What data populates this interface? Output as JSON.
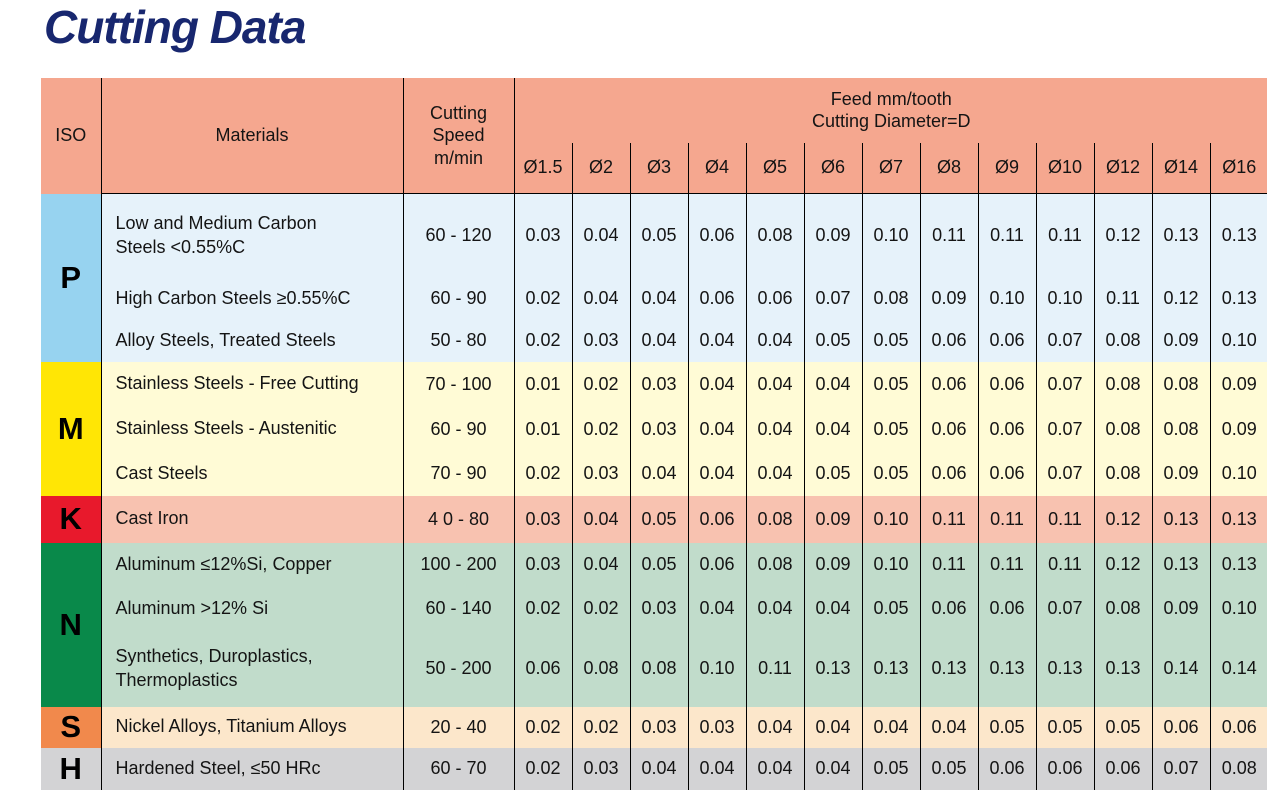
{
  "page_title": "Cutting Data",
  "title_color": "#18276F",
  "table": {
    "header": {
      "header_bg": "#F5A78F",
      "iso_label": "ISO",
      "materials_label": "Materials",
      "cutting_speed_lines": [
        "Cutting",
        "Speed",
        "m/min"
      ],
      "feed_title_lines": [
        "Feed mm/tooth",
        "Cutting Diameter=D"
      ],
      "diameter_labels": [
        "Ø1.5",
        "Ø2",
        "Ø3",
        "Ø4",
        "Ø5",
        "Ø6",
        "Ø7",
        "Ø8",
        "Ø9",
        "Ø10",
        "Ø12",
        "Ø14",
        "Ø16"
      ]
    },
    "groups": [
      {
        "iso": "P",
        "iso_bg": "#97D3F0",
        "row_bg": "#E6F2FA",
        "rows": [
          {
            "material_lines": [
              "Low and Medium Carbon",
              "Steels <0.55%C"
            ],
            "speed": "60 - 120",
            "feeds": [
              "0.03",
              "0.04",
              "0.05",
              "0.06",
              "0.08",
              "0.09",
              "0.10",
              "0.11",
              "0.11",
              "0.11",
              "0.12",
              "0.13",
              "0.13"
            ]
          },
          {
            "material_lines": [
              "High Carbon Steels ≥0.55%C"
            ],
            "speed": "60 - 90",
            "feeds": [
              "0.02",
              "0.04",
              "0.04",
              "0.06",
              "0.06",
              "0.07",
              "0.08",
              "0.09",
              "0.10",
              "0.10",
              "0.11",
              "0.12",
              "0.13"
            ]
          },
          {
            "material_lines": [
              "Alloy Steels, Treated Steels"
            ],
            "speed": "50 - 80",
            "feeds": [
              "0.02",
              "0.03",
              "0.04",
              "0.04",
              "0.04",
              "0.05",
              "0.05",
              "0.06",
              "0.06",
              "0.07",
              "0.08",
              "0.09",
              "0.10"
            ]
          }
        ]
      },
      {
        "iso": "M",
        "iso_bg": "#FFE605",
        "row_bg": "#FFFBD6",
        "rows": [
          {
            "material_lines": [
              "Stainless Steels - Free Cutting"
            ],
            "speed": "70 - 100",
            "feeds": [
              "0.01",
              "0.02",
              "0.03",
              "0.04",
              "0.04",
              "0.04",
              "0.05",
              "0.06",
              "0.06",
              "0.07",
              "0.08",
              "0.08",
              "0.09"
            ]
          },
          {
            "material_lines": [
              "Stainless Steels - Austenitic"
            ],
            "speed": "60 - 90",
            "feeds": [
              "0.01",
              "0.02",
              "0.03",
              "0.04",
              "0.04",
              "0.04",
              "0.05",
              "0.06",
              "0.06",
              "0.07",
              "0.08",
              "0.08",
              "0.09"
            ]
          },
          {
            "material_lines": [
              "Cast Steels"
            ],
            "speed": "70 - 90",
            "feeds": [
              "0.02",
              "0.03",
              "0.04",
              "0.04",
              "0.04",
              "0.05",
              "0.05",
              "0.06",
              "0.06",
              "0.07",
              "0.08",
              "0.09",
              "0.10"
            ]
          }
        ]
      },
      {
        "iso": "K",
        "iso_bg": "#E8192C",
        "row_bg": "#F8C2B0",
        "rows": [
          {
            "material_lines": [
              "Cast Iron"
            ],
            "speed": "4 0 - 80",
            "feeds": [
              "0.03",
              "0.04",
              "0.05",
              "0.06",
              "0.08",
              "0.09",
              "0.10",
              "0.11",
              "0.11",
              "0.11",
              "0.12",
              "0.13",
              "0.13"
            ]
          }
        ]
      },
      {
        "iso": "N",
        "iso_bg": "#09894A",
        "row_bg": "#C1DCCB",
        "rows": [
          {
            "material_lines": [
              "Aluminum ≤12%Si, Copper"
            ],
            "speed": "100 - 200",
            "feeds": [
              "0.03",
              "0.04",
              "0.05",
              "0.06",
              "0.08",
              "0.09",
              "0.10",
              "0.11",
              "0.11",
              "0.11",
              "0.12",
              "0.13",
              "0.13"
            ]
          },
          {
            "material_lines": [
              "Aluminum >12% Si"
            ],
            "speed": "60 - 140",
            "feeds": [
              "0.02",
              "0.02",
              "0.03",
              "0.04",
              "0.04",
              "0.04",
              "0.05",
              "0.06",
              "0.06",
              "0.07",
              "0.08",
              "0.09",
              "0.10"
            ]
          },
          {
            "material_lines": [
              "Synthetics, Duroplastics,",
              "Thermoplastics"
            ],
            "speed": "50 - 200",
            "feeds": [
              "0.06",
              "0.08",
              "0.08",
              "0.10",
              "0.11",
              "0.13",
              "0.13",
              "0.13",
              "0.13",
              "0.13",
              "0.13",
              "0.14",
              "0.14"
            ]
          }
        ]
      },
      {
        "iso": "S",
        "iso_bg": "#F1894C",
        "row_bg": "#FCE7CB",
        "rows": [
          {
            "material_lines": [
              "Nickel Alloys, Titanium Alloys"
            ],
            "speed": "20 - 40",
            "feeds": [
              "0.02",
              "0.02",
              "0.03",
              "0.03",
              "0.04",
              "0.04",
              "0.04",
              "0.04",
              "0.05",
              "0.05",
              "0.05",
              "0.06",
              "0.06"
            ]
          }
        ]
      },
      {
        "iso": "H",
        "iso_bg": "#D3D3D5",
        "row_bg": "#D3D3D5",
        "rows": [
          {
            "material_lines": [
              "Hardened Steel, ≤50 HRc"
            ],
            "speed": "60 - 70",
            "feeds": [
              "0.02",
              "0.03",
              "0.04",
              "0.04",
              "0.04",
              "0.04",
              "0.05",
              "0.05",
              "0.06",
              "0.06",
              "0.06",
              "0.07",
              "0.08"
            ]
          }
        ]
      }
    ]
  }
}
